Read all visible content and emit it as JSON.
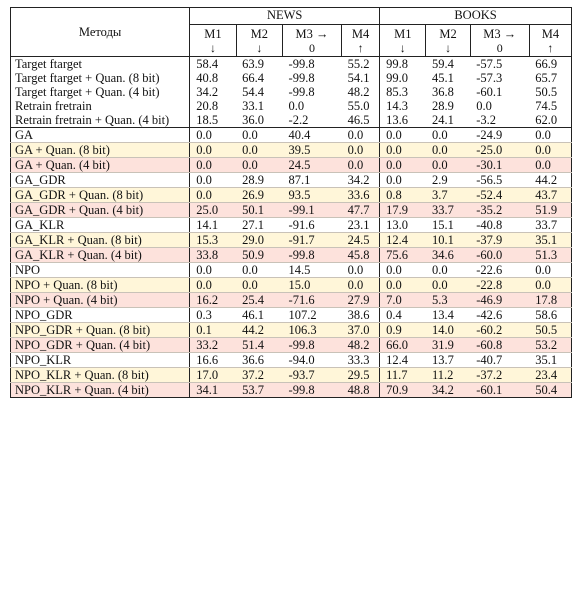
{
  "header": {
    "methods_label": "Методы",
    "groups": [
      "NEWS",
      "BOOKS"
    ],
    "metrics": [
      {
        "label": "M1",
        "arrow": "↓"
      },
      {
        "label": "M2",
        "arrow": "↓"
      },
      {
        "label": "M3 →",
        "arrow": "0"
      },
      {
        "label": "M4",
        "arrow": "↑"
      },
      {
        "label": "M1",
        "arrow": "↓"
      },
      {
        "label": "M2",
        "arrow": "↓"
      },
      {
        "label": "M3 →",
        "arrow": "0"
      },
      {
        "label": "M4",
        "arrow": "↑"
      }
    ]
  },
  "rows": [
    {
      "name": "Target ftarget",
      "values": [
        "58.4",
        "63.9",
        "-99.8",
        "55.2",
        "99.8",
        "59.4",
        "-57.5",
        "66.9"
      ],
      "color": "white"
    },
    {
      "name": "Target ftarget + Quan. (8 bit)",
      "values": [
        "40.8",
        "66.4",
        "-99.8",
        "54.1",
        "99.0",
        "45.1",
        "-57.3",
        "65.7"
      ],
      "color": "white"
    },
    {
      "name": "Target ftarget + Quan. (4 bit)",
      "values": [
        "34.2",
        "54.4",
        "-99.8",
        "48.2",
        "85.3",
        "36.8",
        "-60.1",
        "50.5"
      ],
      "color": "white"
    },
    {
      "name": "Retrain fretrain",
      "values": [
        "20.8",
        "33.1",
        "0.0",
        "55.0",
        "14.3",
        "28.9",
        "0.0",
        "74.5"
      ],
      "color": "white"
    },
    {
      "name": "Retrain fretrain + Quan. (4 bit)",
      "values": [
        "18.5",
        "36.0",
        "-2.2",
        "46.5",
        "13.6",
        "24.1",
        "-3.2",
        "62.0"
      ],
      "color": "white"
    },
    {
      "name": "GA",
      "values": [
        "0.0",
        "0.0",
        "40.4",
        "0.0",
        "0.0",
        "0.0",
        "-24.9",
        "0.0"
      ],
      "color": "white"
    },
    {
      "name": "GA + Quan. (8 bit)",
      "values": [
        "0.0",
        "0.0",
        "39.5",
        "0.0",
        "0.0",
        "0.0",
        "-25.0",
        "0.0"
      ],
      "color": "yellow"
    },
    {
      "name": "GA + Quan. (4 bit)",
      "values": [
        "0.0",
        "0.0",
        "24.5",
        "0.0",
        "0.0",
        "0.0",
        "-30.1",
        "0.0"
      ],
      "color": "pink"
    },
    {
      "name": "GA_GDR",
      "values": [
        "0.0",
        "28.9",
        "87.1",
        "34.2",
        "0.0",
        "2.9",
        "-56.5",
        "44.2"
      ],
      "color": "white"
    },
    {
      "name": "GA_GDR + Quan. (8 bit)",
      "values": [
        "0.0",
        "26.9",
        "93.5",
        "33.6",
        "0.8",
        "3.7",
        "-52.4",
        "43.7"
      ],
      "color": "yellow"
    },
    {
      "name": "GA_GDR + Quan. (4 bit)",
      "values": [
        "25.0",
        "50.1",
        "-99.1",
        "47.7",
        "17.9",
        "33.7",
        "-35.2",
        "51.9"
      ],
      "color": "pink"
    },
    {
      "name": "GA_KLR",
      "values": [
        "14.1",
        "27.1",
        "-91.6",
        "23.1",
        "13.0",
        "15.1",
        "-40.8",
        "33.7"
      ],
      "color": "white"
    },
    {
      "name": "GA_KLR + Quan. (8 bit)",
      "values": [
        "15.3",
        "29.0",
        "-91.7",
        "24.5",
        "12.4",
        "10.1",
        "-37.9",
        "35.1"
      ],
      "color": "yellow"
    },
    {
      "name": "GA_KLR + Quan. (4 bit)",
      "values": [
        "33.8",
        "50.9",
        "-99.8",
        "45.8",
        "75.6",
        "34.6",
        "-60.0",
        "51.3"
      ],
      "color": "pink"
    },
    {
      "name": "NPO",
      "values": [
        "0.0",
        "0.0",
        "14.5",
        "0.0",
        "0.0",
        "0.0",
        "-22.6",
        "0.0"
      ],
      "color": "white"
    },
    {
      "name": "NPO + Quan. (8 bit)",
      "values": [
        "0.0",
        "0.0",
        "15.0",
        "0.0",
        "0.0",
        "0.0",
        "-22.8",
        "0.0"
      ],
      "color": "yellow"
    },
    {
      "name": "NPO + Quan. (4 bit)",
      "values": [
        "16.2",
        "25.4",
        "-71.6",
        "27.9",
        "7.0",
        "5.3",
        "-46.9",
        "17.8"
      ],
      "color": "pink"
    },
    {
      "name": "NPO_GDR",
      "values": [
        "0.3",
        "46.1",
        "107.2",
        "38.6",
        "0.4",
        "13.4",
        "-42.6",
        "58.6"
      ],
      "color": "white"
    },
    {
      "name": "NPO_GDR + Quan. (8 bit)",
      "values": [
        "0.1",
        "44.2",
        "106.3",
        "37.0",
        "0.9",
        "14.0",
        "-60.2",
        "50.5"
      ],
      "color": "yellow"
    },
    {
      "name": "NPO_GDR + Quan. (4 bit)",
      "values": [
        "33.2",
        "51.4",
        "-99.8",
        "48.2",
        "66.0",
        "31.9",
        "-60.8",
        "53.2"
      ],
      "color": "pink"
    },
    {
      "name": "NPO_KLR",
      "values": [
        "16.6",
        "36.6",
        "-94.0",
        "33.3",
        "12.4",
        "13.7",
        "-40.7",
        "35.1"
      ],
      "color": "white"
    },
    {
      "name": "NPO_KLR + Quan. (8 bit)",
      "values": [
        "17.0",
        "37.2",
        "-93.7",
        "29.5",
        "11.7",
        "11.2",
        "-37.2",
        "23.4"
      ],
      "color": "yellow"
    },
    {
      "name": "NPO_KLR + Quan. (4 bit)",
      "values": [
        "34.1",
        "53.7",
        "-99.8",
        "48.8",
        "70.9",
        "34.2",
        "-60.1",
        "50.4"
      ],
      "color": "pink"
    }
  ],
  "colors": {
    "yellow": "#fff6d9",
    "pink": "#fde2dc",
    "border": "#222222"
  }
}
